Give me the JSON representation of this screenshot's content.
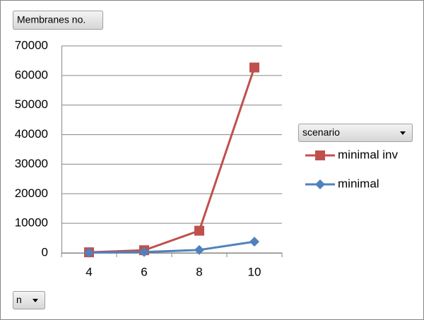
{
  "chart_data": {
    "type": "line",
    "field_buttons": {
      "value_field": "Membranes no.",
      "legend_field": "scenario",
      "axis_field": "n"
    },
    "categories": [
      "4",
      "6",
      "8",
      "10"
    ],
    "series": [
      {
        "name": "minimal inv",
        "color": "#c0504d",
        "marker": "square",
        "values": [
          200,
          900,
          7500,
          62700
        ]
      },
      {
        "name": "minimal",
        "color": "#4f81bd",
        "marker": "diamond",
        "values": [
          100,
          300,
          1000,
          3800
        ]
      }
    ],
    "ylim": [
      0,
      70000
    ],
    "yticks": [
      0,
      10000,
      20000,
      30000,
      40000,
      50000,
      60000,
      70000
    ],
    "grid": true
  }
}
